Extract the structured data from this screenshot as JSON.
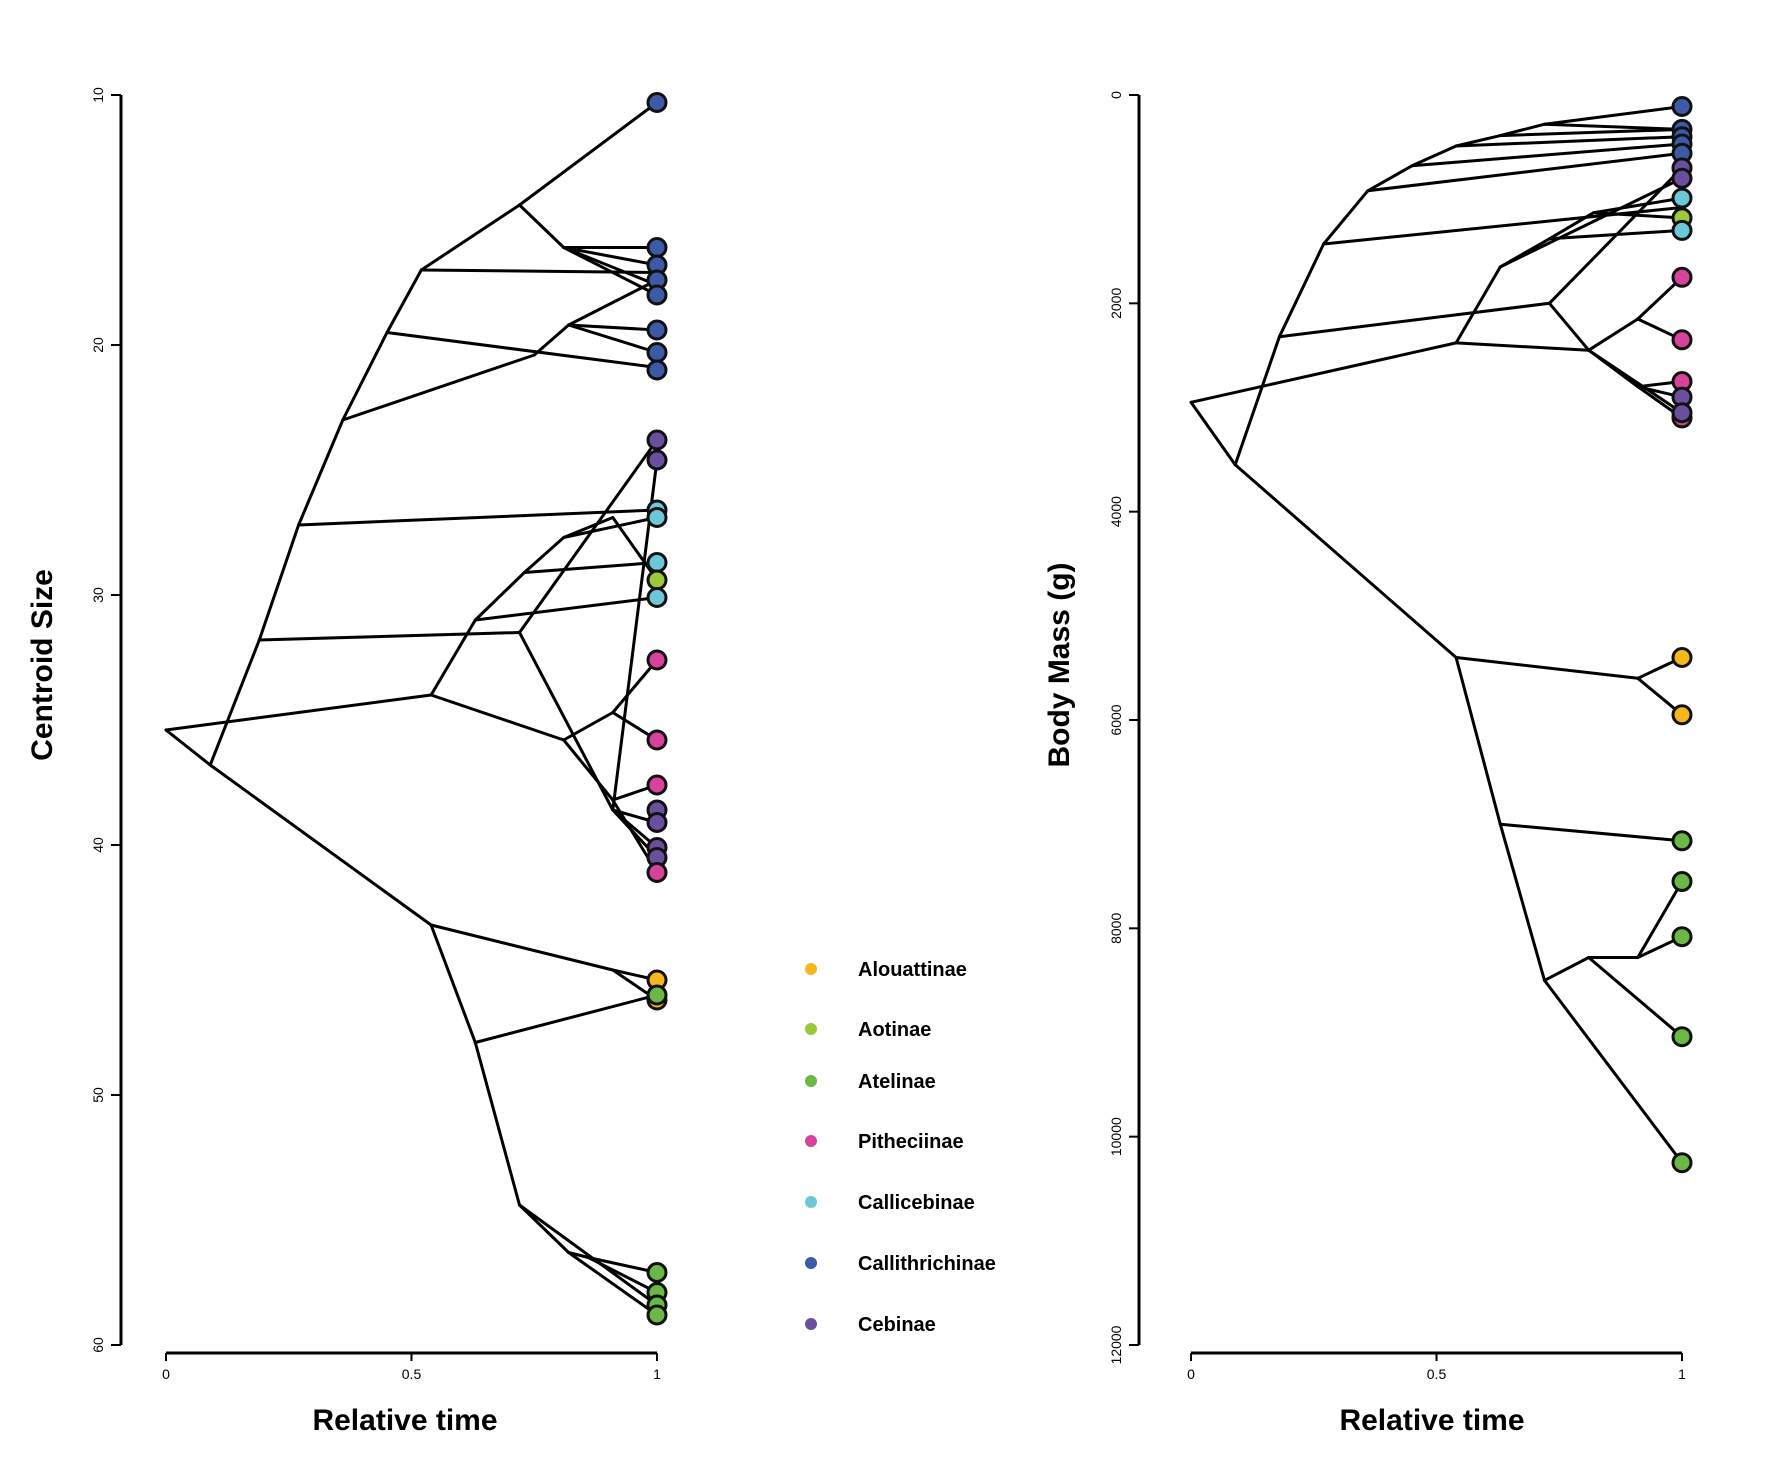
{
  "colors": {
    "Alouattinae": "#f5b81c",
    "Aotinae": "#9cc83c",
    "Atelinae": "#6ab845",
    "Pitheciinae": "#d7429a",
    "Callicebinae": "#6cc8d8",
    "Callithrichinae": "#3d5aa6",
    "Cebinae": "#6a4f9e"
  },
  "legend": {
    "items": [
      "Alouattinae",
      "Aotinae",
      "Atelinae",
      "Pitheciinae",
      "Callicebinae",
      "Callithrichinae",
      "Cebinae"
    ]
  },
  "chart_data": [
    {
      "type": "line",
      "xlabel": "Relative time",
      "ylabel": "Centroid Size",
      "xlim": [
        0,
        1
      ],
      "ylim": [
        10,
        60
      ],
      "y_inverted": true,
      "x_ticks": [
        "0",
        "0.5",
        "1"
      ],
      "y_ticks": [
        "10",
        "20",
        "30",
        "40",
        "50",
        "60"
      ],
      "grid": false,
      "tips": [
        {
          "y": 10.3,
          "group": "Callithrichinae"
        },
        {
          "y": 16.1,
          "group": "Callithrichinae"
        },
        {
          "y": 16.8,
          "group": "Callithrichinae"
        },
        {
          "y": 17.4,
          "group": "Callithrichinae"
        },
        {
          "y": 18.0,
          "group": "Callithrichinae"
        },
        {
          "y": 19.4,
          "group": "Callithrichinae"
        },
        {
          "y": 20.3,
          "group": "Callithrichinae"
        },
        {
          "y": 21.0,
          "group": "Callithrichinae"
        },
        {
          "y": 23.8,
          "group": "Cebinae"
        },
        {
          "y": 24.6,
          "group": "Cebinae"
        },
        {
          "y": 26.6,
          "group": "Callicebinae"
        },
        {
          "y": 26.9,
          "group": "Callicebinae"
        },
        {
          "y": 28.7,
          "group": "Callicebinae"
        },
        {
          "y": 29.4,
          "group": "Aotinae"
        },
        {
          "y": 30.1,
          "group": "Callicebinae"
        },
        {
          "y": 32.6,
          "group": "Pitheciinae"
        },
        {
          "y": 35.8,
          "group": "Pitheciinae"
        },
        {
          "y": 37.6,
          "group": "Pitheciinae"
        },
        {
          "y": 38.6,
          "group": "Cebinae"
        },
        {
          "y": 39.1,
          "group": "Cebinae"
        },
        {
          "y": 40.1,
          "group": "Cebinae"
        },
        {
          "y": 40.5,
          "group": "Cebinae"
        },
        {
          "y": 41.1,
          "group": "Pitheciinae"
        },
        {
          "y": 45.4,
          "group": "Alouattinae"
        },
        {
          "y": 46.2,
          "group": "Alouattinae"
        },
        {
          "y": 46.0,
          "group": "Atelinae"
        },
        {
          "y": 57.1,
          "group": "Atelinae"
        },
        {
          "y": 57.9,
          "group": "Atelinae"
        },
        {
          "y": 58.4,
          "group": "Atelinae"
        },
        {
          "y": 58.8,
          "group": "Atelinae"
        }
      ],
      "segments": [
        [
          0,
          35.4,
          0.09,
          36.8
        ],
        [
          0,
          35.4,
          0.54,
          34.0
        ],
        [
          0.09,
          36.8,
          0.54,
          43.2
        ],
        [
          0.09,
          36.8,
          0.19,
          31.8
        ],
        [
          0.19,
          31.8,
          0.27,
          27.2
        ],
        [
          0.19,
          31.8,
          0.72,
          31.5
        ],
        [
          0.27,
          27.2,
          0.36,
          23.0
        ],
        [
          0.27,
          27.2,
          1,
          26.6
        ],
        [
          0.36,
          23.0,
          0.45,
          19.5
        ],
        [
          0.36,
          23.0,
          0.75,
          20.4
        ],
        [
          0.45,
          19.5,
          0.52,
          17.0
        ],
        [
          0.45,
          19.5,
          1,
          20.9
        ],
        [
          0.52,
          17.0,
          0.72,
          14.4
        ],
        [
          0.52,
          17.0,
          1,
          17.1
        ],
        [
          0.72,
          14.4,
          1,
          10.3
        ],
        [
          0.72,
          14.4,
          0.81,
          16.1
        ],
        [
          0.81,
          16.1,
          1,
          16.8
        ],
        [
          0.81,
          16.1,
          1,
          17.6
        ],
        [
          0.81,
          16.1,
          1,
          18.0
        ],
        [
          0.81,
          16.1,
          1,
          16.1
        ],
        [
          0.75,
          20.4,
          0.82,
          19.2
        ],
        [
          0.82,
          19.2,
          1,
          20.3
        ],
        [
          0.82,
          19.2,
          1,
          19.4
        ],
        [
          0.82,
          19.2,
          1,
          17.4
        ],
        [
          0.54,
          34.0,
          0.63,
          31.0
        ],
        [
          0.54,
          34.0,
          0.81,
          35.8
        ],
        [
          0.63,
          31.0,
          1,
          30.1
        ],
        [
          0.63,
          31.0,
          0.73,
          29.1
        ],
        [
          0.73,
          29.1,
          0.81,
          27.7
        ],
        [
          0.73,
          29.1,
          1,
          28.7
        ],
        [
          0.81,
          27.7,
          1,
          26.9
        ],
        [
          0.81,
          27.7,
          0.91,
          26.9
        ],
        [
          0.91,
          26.9,
          1,
          29.4
        ],
        [
          0.72,
          31.5,
          1,
          23.8
        ],
        [
          0.72,
          31.5,
          0.91,
          38.6
        ],
        [
          0.91,
          38.6,
          1,
          24.6
        ],
        [
          0.91,
          38.6,
          1,
          39.1
        ],
        [
          0.91,
          38.6,
          1,
          40.1
        ],
        [
          0.91,
          38.6,
          1,
          40.5
        ],
        [
          0.81,
          35.8,
          0.91,
          34.7
        ],
        [
          0.91,
          34.7,
          1,
          32.6
        ],
        [
          0.91,
          34.7,
          1,
          35.8
        ],
        [
          0.81,
          35.8,
          0.91,
          38.2
        ],
        [
          0.91,
          38.2,
          1,
          37.6
        ],
        [
          0.91,
          38.2,
          1,
          41.1
        ],
        [
          0.54,
          43.2,
          0.91,
          45.0
        ],
        [
          0.91,
          45.0,
          1,
          45.4
        ],
        [
          0.91,
          45.0,
          1,
          46.2
        ],
        [
          0.54,
          43.2,
          0.63,
          47.9
        ],
        [
          0.63,
          47.9,
          1,
          46.0
        ],
        [
          0.63,
          47.9,
          0.72,
          54.4
        ],
        [
          0.72,
          54.4,
          0.82,
          56.3
        ],
        [
          0.72,
          54.4,
          1,
          58.4
        ],
        [
          0.82,
          56.3,
          0.86,
          56.5
        ],
        [
          0.86,
          56.5,
          1,
          57.1
        ],
        [
          0.86,
          56.5,
          1,
          57.9
        ],
        [
          0.82,
          56.3,
          1,
          58.8
        ]
      ]
    },
    {
      "type": "line",
      "xlabel": "Relative time",
      "ylabel": "Body Mass (g)",
      "xlim": [
        0,
        1
      ],
      "ylim": [
        0,
        12000
      ],
      "y_inverted": true,
      "x_ticks": [
        "0",
        "0.5",
        "1"
      ],
      "y_ticks": [
        "0",
        "2000",
        "4000",
        "6000",
        "8000",
        "10000",
        "12000"
      ],
      "grid": false,
      "tips": [
        {
          "y": 110,
          "group": "Callithrichinae"
        },
        {
          "y": 330,
          "group": "Callithrichinae"
        },
        {
          "y": 400,
          "group": "Callithrichinae"
        },
        {
          "y": 470,
          "group": "Callithrichinae"
        },
        {
          "y": 560,
          "group": "Callithrichinae"
        },
        {
          "y": 700,
          "group": "Cebinae"
        },
        {
          "y": 800,
          "group": "Cebinae"
        },
        {
          "y": 990,
          "group": "Callicebinae"
        },
        {
          "y": 1180,
          "group": "Aotinae"
        },
        {
          "y": 1300,
          "group": "Callicebinae"
        },
        {
          "y": 1750,
          "group": "Pitheciinae"
        },
        {
          "y": 2350,
          "group": "Pitheciinae"
        },
        {
          "y": 2750,
          "group": "Pitheciinae"
        },
        {
          "y": 2900,
          "group": "Cebinae"
        },
        {
          "y": 3100,
          "group": "Pitheciinae"
        },
        {
          "y": 3050,
          "group": "Cebinae"
        },
        {
          "y": 5400,
          "group": "Alouattinae"
        },
        {
          "y": 5950,
          "group": "Alouattinae"
        },
        {
          "y": 7160,
          "group": "Atelinae"
        },
        {
          "y": 7550,
          "group": "Atelinae"
        },
        {
          "y": 8080,
          "group": "Atelinae"
        },
        {
          "y": 9040,
          "group": "Atelinae"
        },
        {
          "y": 10250,
          "group": "Atelinae"
        }
      ],
      "segments": [
        [
          0,
          2950,
          0.09,
          3550
        ],
        [
          0,
          2950,
          0.54,
          2380
        ],
        [
          0.09,
          3550,
          0.54,
          5400
        ],
        [
          0.09,
          3550,
          0.18,
          2320
        ],
        [
          0.18,
          2320,
          0.27,
          1430
        ],
        [
          0.18,
          2320,
          0.73,
          2000
        ],
        [
          0.27,
          1430,
          0.36,
          920
        ],
        [
          0.27,
          1430,
          1,
          1080
        ],
        [
          0.36,
          920,
          0.45,
          680
        ],
        [
          0.36,
          920,
          1,
          560
        ],
        [
          0.45,
          680,
          0.54,
          490
        ],
        [
          0.45,
          680,
          1,
          470
        ],
        [
          0.54,
          490,
          0.63,
          390
        ],
        [
          0.54,
          490,
          1,
          400
        ],
        [
          0.63,
          390,
          0.72,
          280
        ],
        [
          0.63,
          390,
          1,
          330
        ],
        [
          0.72,
          280,
          1,
          110
        ],
        [
          0.72,
          280,
          1,
          330
        ],
        [
          0.54,
          2380,
          0.63,
          1650
        ],
        [
          0.54,
          2380,
          0.81,
          2450
        ],
        [
          0.63,
          1650,
          0.73,
          1380
        ],
        [
          0.63,
          1650,
          1,
          800
        ],
        [
          0.73,
          1380,
          0.82,
          1130
        ],
        [
          0.73,
          1380,
          1,
          1300
        ],
        [
          0.82,
          1130,
          1,
          990
        ],
        [
          0.82,
          1130,
          1,
          1180
        ],
        [
          0.73,
          2000,
          1,
          700
        ],
        [
          0.73,
          2000,
          0.81,
          2450
        ],
        [
          0.81,
          2450,
          0.91,
          2150
        ],
        [
          0.91,
          2150,
          1,
          1750
        ],
        [
          0.91,
          2150,
          1,
          2350
        ],
        [
          0.81,
          2450,
          0.91,
          2800
        ],
        [
          0.91,
          2800,
          1,
          2750
        ],
        [
          0.91,
          2800,
          1,
          3100
        ],
        [
          0.91,
          2800,
          1,
          2900
        ],
        [
          0.81,
          2450,
          1,
          3050
        ],
        [
          0.54,
          5400,
          0.91,
          5600
        ],
        [
          0.91,
          5600,
          1,
          5400
        ],
        [
          0.91,
          5600,
          1,
          5950
        ],
        [
          0.54,
          5400,
          0.63,
          7000
        ],
        [
          0.63,
          7000,
          1,
          7160
        ],
        [
          0.63,
          7000,
          0.72,
          8500
        ],
        [
          0.72,
          8500,
          0.81,
          8280
        ],
        [
          0.81,
          8280,
          0.91,
          8280
        ],
        [
          0.91,
          8280,
          1,
          7550
        ],
        [
          0.91,
          8280,
          1,
          8080
        ],
        [
          0.81,
          8280,
          1,
          9040
        ],
        [
          0.72,
          8500,
          1,
          10250
        ]
      ]
    }
  ]
}
